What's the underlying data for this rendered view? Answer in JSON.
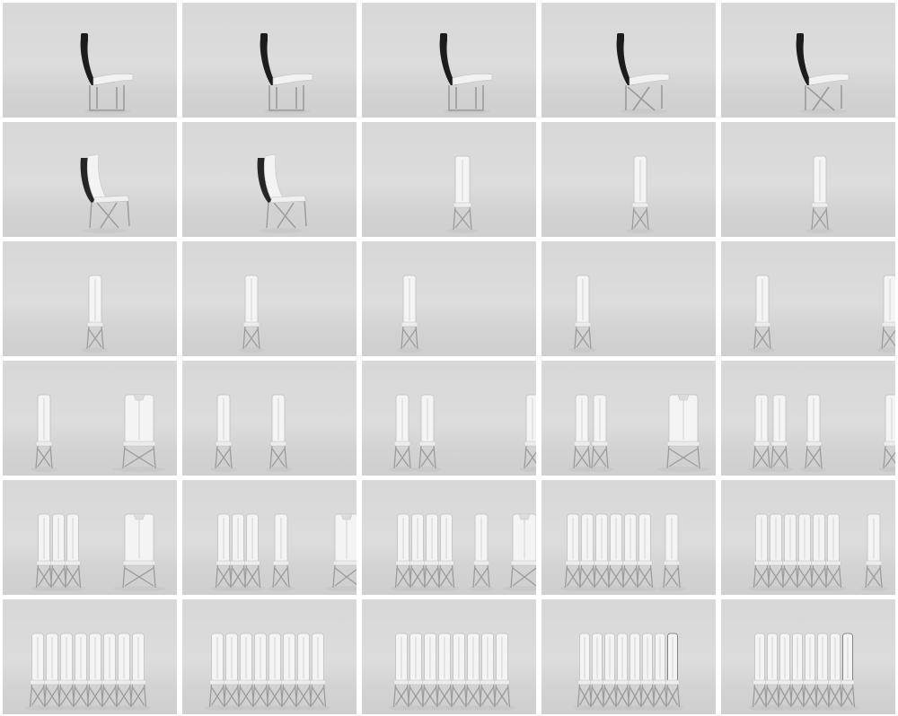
{
  "sheet": {
    "rows": 6,
    "columns": 5,
    "frames": [
      {
        "chairs": [
          {
            "pose": "side-black"
          }
        ]
      },
      {
        "chairs": [
          {
            "pose": "side-black"
          }
        ]
      },
      {
        "chairs": [
          {
            "pose": "side-black"
          }
        ]
      },
      {
        "chairs": [
          {
            "pose": "side-black-cross"
          }
        ]
      },
      {
        "chairs": [
          {
            "pose": "side-black-cross"
          }
        ]
      },
      {
        "chairs": [
          {
            "pose": "three-quarter"
          }
        ]
      },
      {
        "chairs": [
          {
            "pose": "three-quarter"
          }
        ]
      },
      {
        "chairs": [
          {
            "pose": "front-narrow"
          }
        ]
      },
      {
        "chairs": [
          {
            "pose": "front-thin"
          }
        ]
      },
      {
        "chairs": [
          {
            "pose": "front-thin"
          }
        ]
      },
      {
        "chairs": [
          {
            "pose": "front-thin"
          }
        ]
      },
      {
        "chairs": [
          {
            "pose": "front-thin"
          }
        ]
      },
      {
        "chairs": [
          {
            "pose": "front-thin"
          }
        ]
      },
      {
        "chairs": [
          {
            "pose": "front-thin"
          }
        ]
      },
      {
        "chairs": [
          {
            "pose": "front-thin"
          },
          {
            "pose": "front-thin-edge"
          }
        ]
      },
      {
        "chairs": [
          {
            "pose": "front-thin"
          },
          {
            "pose": "front-wide"
          }
        ]
      },
      {
        "chairs": [
          {
            "pose": "front-thin"
          },
          {
            "pose": "front-thin"
          }
        ]
      },
      {
        "chairs": [
          {
            "pose": "front-thin"
          },
          {
            "pose": "front-thin"
          },
          {
            "pose": "front-thin-edge"
          }
        ]
      },
      {
        "chairs": [
          {
            "pose": "front-thin"
          },
          {
            "pose": "front-thin"
          },
          {
            "pose": "front-wide"
          }
        ]
      },
      {
        "chairs": [
          {
            "pose": "front-thin"
          },
          {
            "pose": "front-thin"
          },
          {
            "pose": "front-thin"
          },
          {
            "pose": "front-thin-edge"
          }
        ]
      },
      {
        "chairs": [
          {
            "pose": "row-3"
          },
          {
            "pose": "front-wide"
          }
        ]
      },
      {
        "chairs": [
          {
            "pose": "row-3"
          },
          {
            "pose": "front-thin"
          },
          {
            "pose": "front-wide-edge"
          }
        ]
      },
      {
        "chairs": [
          {
            "pose": "row-4"
          },
          {
            "pose": "front-thin"
          },
          {
            "pose": "front-wide-edge"
          }
        ]
      },
      {
        "chairs": [
          {
            "pose": "row-6"
          },
          {
            "pose": "front-thin"
          }
        ]
      },
      {
        "chairs": [
          {
            "pose": "row-6"
          },
          {
            "pose": "front-thin"
          }
        ]
      },
      {
        "chairs": [
          {
            "pose": "row-8"
          }
        ]
      },
      {
        "chairs": [
          {
            "pose": "row-8"
          }
        ]
      },
      {
        "chairs": [
          {
            "pose": "row-8"
          }
        ]
      },
      {
        "chairs": [
          {
            "pose": "row-8-angled"
          }
        ]
      },
      {
        "chairs": [
          {
            "pose": "row-8-angled"
          }
        ]
      }
    ]
  }
}
